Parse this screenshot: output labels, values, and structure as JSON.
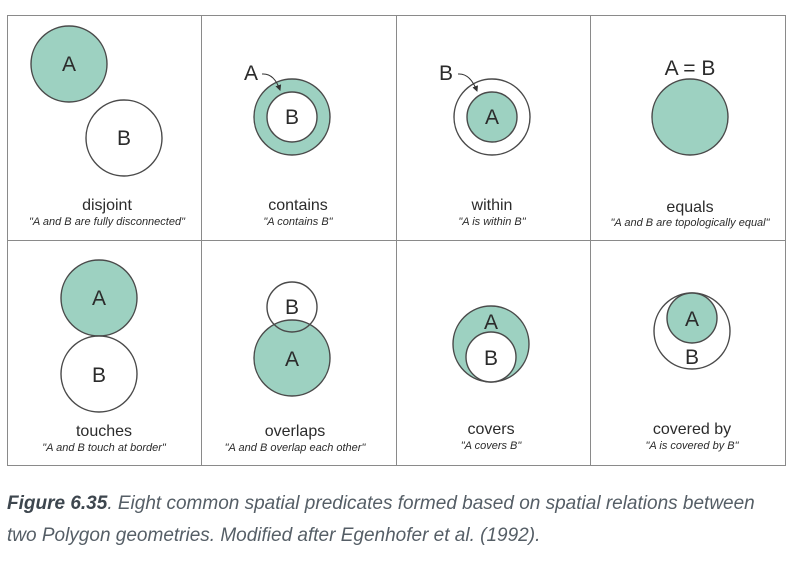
{
  "colors": {
    "fill_a": "#9dd1c1",
    "stroke": "#4a4a4a",
    "grid": "#8a8a8a"
  },
  "cells": [
    {
      "title": "disjoint",
      "desc": "\"A and B are fully disconnected\"",
      "labels": {
        "a": "A",
        "b": "B"
      }
    },
    {
      "title": "contains",
      "desc": "\"A contains B\"",
      "labels": {
        "outer": "A",
        "b": "B"
      }
    },
    {
      "title": "within",
      "desc": "\"A is within B\"",
      "labels": {
        "outer": "B",
        "a": "A"
      }
    },
    {
      "title": "equals",
      "desc": "\"A and B are topologically equal\"",
      "labels": {
        "top": "A = B"
      }
    },
    {
      "title": "touches",
      "desc": "\"A and B touch at border\"",
      "labels": {
        "a": "A",
        "b": "B"
      }
    },
    {
      "title": "overlaps",
      "desc": "\"A and B overlap each other\"",
      "labels": {
        "a": "A",
        "b": "B"
      }
    },
    {
      "title": "covers",
      "desc": "\"A covers B\"",
      "labels": {
        "a": "A",
        "b": "B"
      }
    },
    {
      "title": "covered by",
      "desc": "\"A is covered by B\"",
      "labels": {
        "a": "A",
        "b": "B"
      }
    }
  ],
  "caption": {
    "figure_ref": "Figure 6.35",
    "text": ". Eight common spatial predicates formed based on spatial relations between two Polygon geometries. Modified after Egenhofer et al. (1992)."
  }
}
